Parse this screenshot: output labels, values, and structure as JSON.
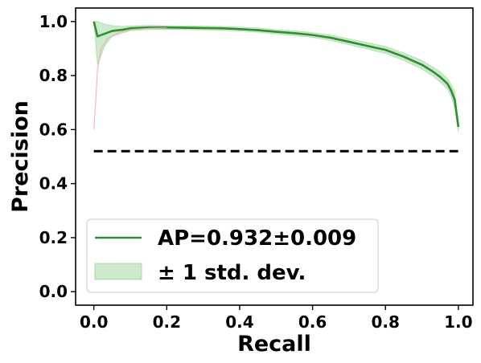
{
  "chart_data": {
    "type": "line",
    "xlabel": "Recall",
    "ylabel": "Precision",
    "xlim": [
      -0.05,
      1.04
    ],
    "ylim": [
      -0.05,
      1.05
    ],
    "xticks": [
      0.0,
      0.2,
      0.4,
      0.6,
      0.8,
      1.0
    ],
    "yticks": [
      0.0,
      0.2,
      0.4,
      0.6,
      0.8,
      1.0
    ],
    "xtick_labels": [
      "0.0",
      "0.2",
      "0.4",
      "0.6",
      "0.8",
      "1.0"
    ],
    "ytick_labels": [
      "0.0",
      "0.2",
      "0.4",
      "0.6",
      "0.8",
      "1.0"
    ],
    "grid": false,
    "legend_position": "lower-left",
    "colors": {
      "mean": "#2f8f2f",
      "band": "#7fc97f",
      "baseline": "#000000",
      "faint_red": "#f4a6a6"
    },
    "series": [
      {
        "name": "AP=0.932±0.009",
        "style": "solid",
        "x": [
          0.0,
          0.01,
          0.03,
          0.05,
          0.08,
          0.1,
          0.15,
          0.2,
          0.25,
          0.3,
          0.35,
          0.4,
          0.45,
          0.5,
          0.55,
          0.6,
          0.65,
          0.7,
          0.75,
          0.8,
          0.85,
          0.9,
          0.93,
          0.95,
          0.97,
          0.98,
          0.99,
          1.0
        ],
        "y": [
          1.0,
          0.945,
          0.955,
          0.965,
          0.97,
          0.975,
          0.978,
          0.978,
          0.977,
          0.976,
          0.975,
          0.972,
          0.968,
          0.962,
          0.957,
          0.95,
          0.94,
          0.925,
          0.91,
          0.895,
          0.87,
          0.84,
          0.815,
          0.795,
          0.77,
          0.745,
          0.71,
          0.61
        ]
      },
      {
        "name": "± 1 std. dev.",
        "style": "band",
        "x": [
          0.0,
          0.01,
          0.03,
          0.05,
          0.08,
          0.1,
          0.15,
          0.2,
          0.25,
          0.3,
          0.35,
          0.4,
          0.45,
          0.5,
          0.55,
          0.6,
          0.65,
          0.7,
          0.75,
          0.8,
          0.85,
          0.9,
          0.93,
          0.95,
          0.97,
          0.98,
          0.99,
          1.0
        ],
        "lower": [
          1.0,
          0.84,
          0.91,
          0.945,
          0.958,
          0.966,
          0.97,
          0.971,
          0.97,
          0.969,
          0.968,
          0.965,
          0.96,
          0.954,
          0.948,
          0.941,
          0.93,
          0.914,
          0.898,
          0.882,
          0.856,
          0.824,
          0.798,
          0.776,
          0.75,
          0.722,
          0.68,
          0.59
        ],
        "upper": [
          1.0,
          1.0,
          0.99,
          0.985,
          0.982,
          0.984,
          0.986,
          0.985,
          0.984,
          0.983,
          0.982,
          0.979,
          0.976,
          0.97,
          0.966,
          0.959,
          0.95,
          0.936,
          0.922,
          0.908,
          0.884,
          0.856,
          0.832,
          0.814,
          0.79,
          0.768,
          0.74,
          0.63
        ]
      },
      {
        "name": "",
        "style": "faint",
        "x": [
          0.0,
          0.005,
          0.01,
          0.02,
          0.04,
          0.07,
          0.1,
          0.15,
          0.2
        ],
        "y": [
          0.6,
          0.7,
          0.82,
          0.9,
          0.94,
          0.96,
          0.97,
          0.975,
          0.977
        ]
      },
      {
        "name": "",
        "style": "dashed",
        "x": [
          0.0,
          1.0
        ],
        "y": [
          0.52,
          0.52
        ]
      }
    ],
    "legend": [
      {
        "label": "AP=0.932±0.009",
        "kind": "line"
      },
      {
        "label": "± 1 std. dev.",
        "kind": "patch"
      }
    ]
  }
}
